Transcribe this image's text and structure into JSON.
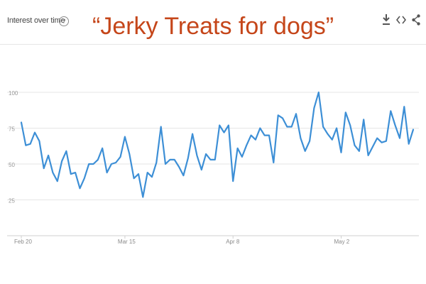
{
  "widget": {
    "label": "Interest over time",
    "help_symbol": "?"
  },
  "title": "“Jerky Treats for dogs”",
  "toolbar": {
    "download_icon": "download-icon",
    "embed_icon": "embed-icon",
    "share_icon": "share-icon"
  },
  "colors": {
    "line": "#3d8fd6",
    "title": "#c5461a",
    "grid": "#e6e6e6"
  },
  "chart_data": {
    "type": "line",
    "title": "“Jerky Treats for dogs”",
    "ylabel": "",
    "xlabel": "",
    "ylim": [
      0,
      100
    ],
    "yticks": [
      25,
      50,
      75,
      100
    ],
    "x_tick_labels": [
      {
        "label": "Feb 20",
        "index": 0
      },
      {
        "label": "Mar 15",
        "index": 23
      },
      {
        "label": "Apr 8",
        "index": 47
      },
      {
        "label": "May 2",
        "index": 71
      }
    ],
    "grid": true,
    "series": [
      {
        "values": [
          79,
          63,
          64,
          72,
          66,
          47,
          56,
          44,
          38,
          52,
          59,
          43,
          44,
          33,
          40,
          50,
          50,
          53,
          61,
          44,
          50,
          51,
          55,
          69,
          57,
          40,
          43,
          27,
          44,
          41,
          51,
          76,
          50,
          53,
          53,
          48,
          42,
          54,
          71,
          56,
          46,
          57,
          53,
          53,
          77,
          72,
          77,
          38,
          61,
          55,
          63,
          70,
          67,
          75,
          70,
          70,
          51,
          84,
          82,
          76,
          76,
          85,
          68,
          59,
          66,
          89,
          100,
          76,
          71,
          67,
          75,
          58,
          86,
          77,
          63,
          59,
          81,
          56,
          62,
          68,
          65,
          66,
          87,
          77,
          68,
          90,
          64,
          74
        ]
      }
    ]
  }
}
